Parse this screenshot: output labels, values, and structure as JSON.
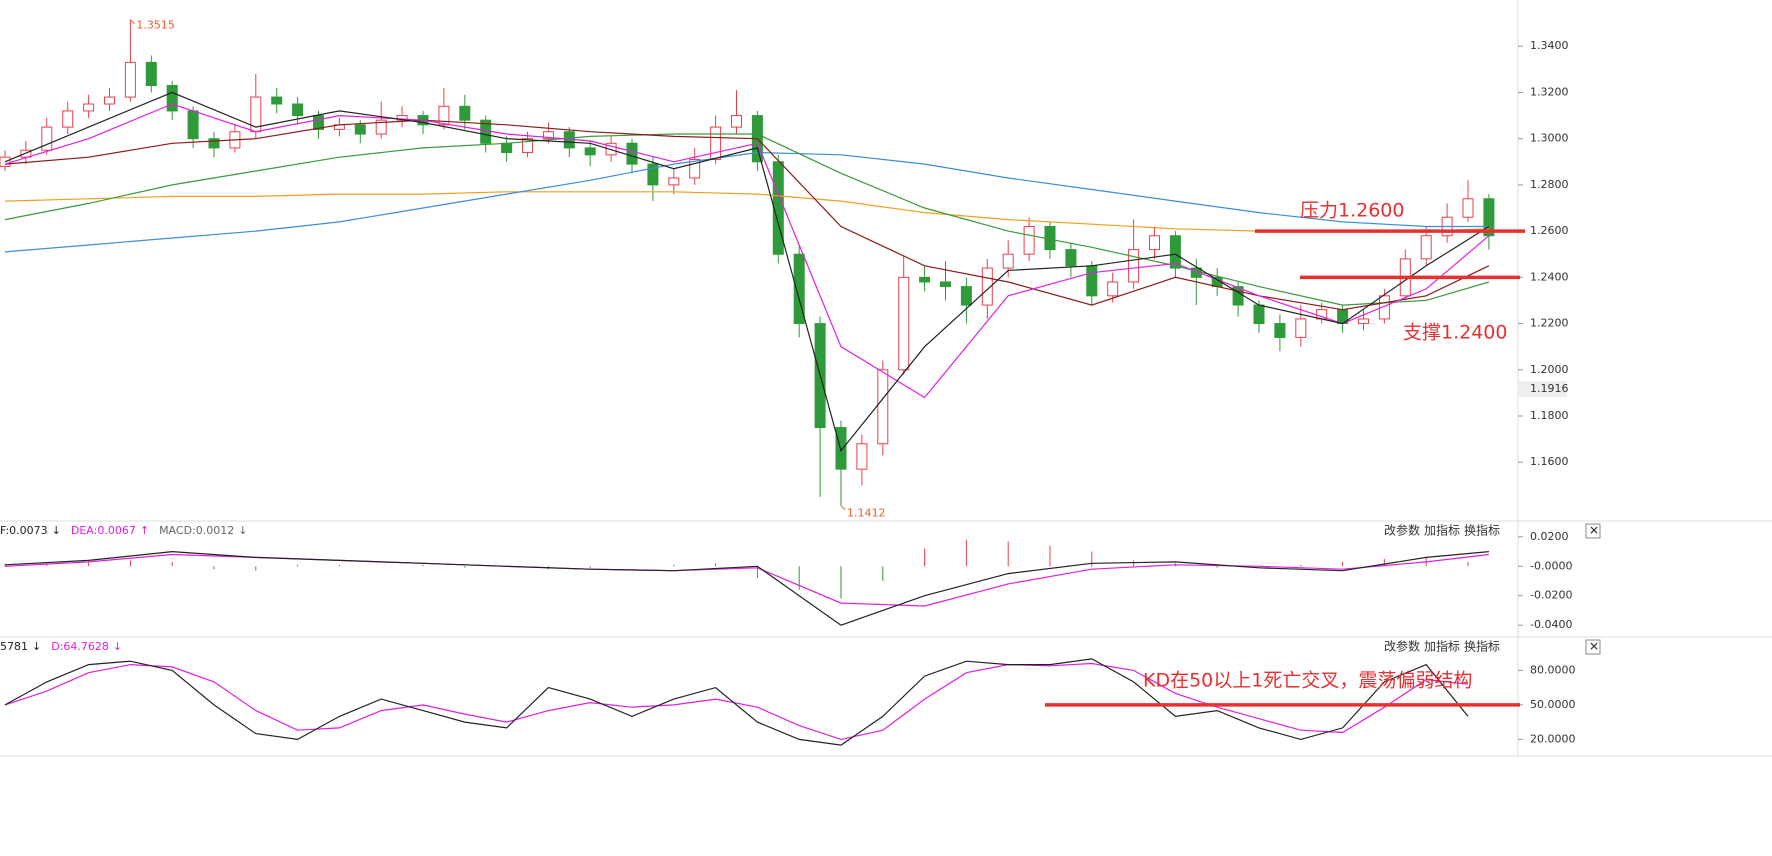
{
  "chart_data": [
    {
      "type": "candlestick",
      "up_color": "#e8414b",
      "down_color": "#2e9a3a",
      "candles": {
        "open": [
          1.288,
          1.292,
          1.295,
          1.305,
          1.312,
          1.315,
          1.318,
          1.333,
          1.323,
          1.312,
          1.3,
          1.296,
          1.303,
          1.318,
          1.315,
          1.31,
          1.304,
          1.306,
          1.302,
          1.308,
          1.31,
          1.306,
          1.314,
          1.308,
          1.298,
          1.294,
          1.3,
          1.303,
          1.296,
          1.293,
          1.298,
          1.289,
          1.28,
          1.283,
          1.291,
          1.305,
          1.31,
          1.29,
          1.25,
          1.22,
          1.175,
          1.157,
          1.168,
          1.2,
          1.24,
          1.238,
          1.236,
          1.228,
          1.244,
          1.25,
          1.262,
          1.252,
          1.245,
          1.232,
          1.238,
          1.252,
          1.258,
          1.244,
          1.24,
          1.236,
          1.228,
          1.22,
          1.214,
          1.222,
          1.226,
          1.22,
          1.222,
          1.232,
          1.248,
          1.258,
          1.266,
          1.274
        ],
        "high": [
          1.295,
          1.299,
          1.309,
          1.316,
          1.319,
          1.322,
          1.3515,
          1.336,
          1.325,
          1.314,
          1.303,
          1.306,
          1.328,
          1.322,
          1.318,
          1.312,
          1.309,
          1.308,
          1.316,
          1.314,
          1.312,
          1.322,
          1.319,
          1.31,
          1.301,
          1.303,
          1.307,
          1.305,
          1.299,
          1.301,
          1.3,
          1.292,
          1.287,
          1.296,
          1.31,
          1.321,
          1.312,
          1.293,
          1.254,
          1.223,
          1.178,
          1.172,
          1.204,
          1.249,
          1.245,
          1.247,
          1.24,
          1.248,
          1.256,
          1.266,
          1.264,
          1.255,
          1.247,
          1.242,
          1.265,
          1.262,
          1.26,
          1.248,
          1.244,
          1.238,
          1.23,
          1.224,
          1.228,
          1.229,
          1.228,
          1.226,
          1.235,
          1.252,
          1.262,
          1.272,
          1.282,
          1.276
        ],
        "low": [
          1.286,
          1.289,
          1.293,
          1.302,
          1.309,
          1.312,
          1.316,
          1.32,
          1.308,
          1.296,
          1.292,
          1.294,
          1.3,
          1.311,
          1.306,
          1.3,
          1.301,
          1.298,
          1.3,
          1.305,
          1.302,
          1.304,
          1.304,
          1.294,
          1.29,
          1.292,
          1.298,
          1.292,
          1.288,
          1.29,
          1.285,
          1.273,
          1.276,
          1.28,
          1.289,
          1.302,
          1.286,
          1.246,
          1.214,
          1.145,
          1.1412,
          1.15,
          1.163,
          1.198,
          1.234,
          1.23,
          1.22,
          1.222,
          1.24,
          1.247,
          1.248,
          1.24,
          1.228,
          1.229,
          1.235,
          1.248,
          1.24,
          1.228,
          1.232,
          1.223,
          1.216,
          1.208,
          1.21,
          1.22,
          1.216,
          1.217,
          1.22,
          1.23,
          1.245,
          1.255,
          1.264,
          1.252
        ],
        "close": [
          1.292,
          1.295,
          1.305,
          1.312,
          1.315,
          1.318,
          1.333,
          1.323,
          1.312,
          1.3,
          1.296,
          1.303,
          1.318,
          1.315,
          1.31,
          1.304,
          1.306,
          1.302,
          1.308,
          1.31,
          1.306,
          1.314,
          1.308,
          1.298,
          1.294,
          1.3,
          1.303,
          1.296,
          1.293,
          1.298,
          1.289,
          1.28,
          1.283,
          1.291,
          1.305,
          1.31,
          1.29,
          1.25,
          1.22,
          1.175,
          1.157,
          1.168,
          1.2,
          1.24,
          1.238,
          1.236,
          1.228,
          1.244,
          1.25,
          1.262,
          1.252,
          1.245,
          1.232,
          1.238,
          1.252,
          1.258,
          1.244,
          1.24,
          1.236,
          1.228,
          1.22,
          1.214,
          1.222,
          1.226,
          1.22,
          1.222,
          1.232,
          1.248,
          1.258,
          1.266,
          1.274,
          1.258
        ]
      },
      "lines": [
        {
          "color": "#f0a020",
          "x": [
            0,
            4,
            8,
            12,
            16,
            20,
            24,
            28,
            32,
            36,
            40,
            44,
            48,
            52,
            56,
            60,
            64,
            68,
            71
          ],
          "values": [
            1.273,
            1.274,
            1.275,
            1.275,
            1.276,
            1.276,
            1.277,
            1.277,
            1.277,
            1.276,
            1.273,
            1.268,
            1.265,
            1.263,
            1.261,
            1.26,
            1.26,
            1.26,
            1.261
          ]
        },
        {
          "color": "#3b8fd9",
          "x": [
            0,
            4,
            8,
            12,
            16,
            20,
            24,
            28,
            32,
            36,
            40,
            44,
            48,
            52,
            56,
            60,
            64,
            68,
            71
          ],
          "values": [
            1.251,
            1.254,
            1.257,
            1.26,
            1.264,
            1.27,
            1.276,
            1.282,
            1.289,
            1.294,
            1.293,
            1.289,
            1.283,
            1.278,
            1.273,
            1.268,
            1.264,
            1.262,
            1.262
          ]
        },
        {
          "color": "#3a9a3a",
          "x": [
            0,
            4,
            8,
            12,
            16,
            20,
            24,
            28,
            32,
            36,
            40,
            44,
            48,
            52,
            56,
            60,
            64,
            68,
            71
          ],
          "values": [
            1.265,
            1.272,
            1.28,
            1.286,
            1.292,
            1.296,
            1.298,
            1.301,
            1.302,
            1.302,
            1.285,
            1.27,
            1.26,
            1.253,
            1.245,
            1.236,
            1.228,
            1.23,
            1.238
          ]
        },
        {
          "color": "#8b1a1a",
          "x": [
            0,
            4,
            8,
            12,
            16,
            20,
            24,
            28,
            32,
            36,
            40,
            44,
            48,
            52,
            56,
            60,
            64,
            68,
            71
          ],
          "values": [
            1.289,
            1.292,
            1.298,
            1.3,
            1.306,
            1.308,
            1.306,
            1.303,
            1.301,
            1.3,
            1.262,
            1.245,
            1.238,
            1.228,
            1.24,
            1.232,
            1.226,
            1.232,
            1.245
          ]
        },
        {
          "color": "#e020e0",
          "x": [
            0,
            4,
            8,
            12,
            16,
            20,
            24,
            28,
            32,
            36,
            40,
            44,
            48,
            52,
            56,
            60,
            64,
            68,
            71
          ],
          "values": [
            1.289,
            1.3,
            1.315,
            1.303,
            1.31,
            1.308,
            1.302,
            1.299,
            1.29,
            1.298,
            1.21,
            1.188,
            1.232,
            1.242,
            1.246,
            1.232,
            1.22,
            1.235,
            1.258
          ]
        },
        {
          "color": "#222222",
          "x": [
            0,
            4,
            8,
            12,
            16,
            20,
            24,
            28,
            32,
            36,
            40,
            44,
            48,
            52,
            56,
            60,
            64,
            68,
            71
          ],
          "values": [
            1.29,
            1.305,
            1.32,
            1.305,
            1.312,
            1.307,
            1.3,
            1.298,
            1.287,
            1.296,
            1.165,
            1.21,
            1.243,
            1.245,
            1.25,
            1.228,
            1.22,
            1.245,
            1.262
          ]
        }
      ],
      "ylim": [
        1.135,
        1.36
      ],
      "yticks": [
        {
          "value": 1.16,
          "label": "1.1600"
        },
        {
          "value": 1.18,
          "label": "1.1800"
        },
        {
          "value": 1.2,
          "label": "1.2000"
        },
        {
          "value": 1.22,
          "label": "1.2200"
        },
        {
          "value": 1.24,
          "label": "1.2400"
        },
        {
          "value": 1.26,
          "label": "1.2600"
        },
        {
          "value": 1.28,
          "label": "1.2800"
        },
        {
          "value": 1.3,
          "label": "1.3000"
        },
        {
          "value": 1.32,
          "label": "1.3200"
        },
        {
          "value": 1.34,
          "label": "1.3400"
        }
      ],
      "current_price": 1.1916,
      "annotations": [
        {
          "text": "压力1.2600",
          "value": 1.26,
          "color": "#e83030"
        },
        {
          "text": "支撑1.2400",
          "value": 1.24,
          "color": "#e83030"
        }
      ]
    },
    {
      "type": "macd",
      "header": [
        {
          "text": "F:0.0073",
          "arrow": "↓",
          "color": "#222222"
        },
        {
          "text": "DEA:0.0067",
          "arrow": "↑",
          "color": "#e020e0"
        },
        {
          "text": "MACD:0.0012",
          "arrow": "↓",
          "color": "#666666"
        }
      ],
      "buttons": [
        "改参数",
        "加指标",
        "换指标",
        "✕"
      ],
      "up_color": "#e8414b",
      "down_color": "#2e9a3a",
      "histogram": {
        "x": [
          0,
          2,
          4,
          6,
          8,
          10,
          12,
          14,
          16,
          18,
          20,
          22,
          24,
          26,
          28,
          30,
          32,
          34,
          36,
          38,
          40,
          42,
          44,
          46,
          48,
          50,
          52,
          54,
          56,
          58,
          60,
          62,
          64,
          66,
          68,
          70
        ],
        "values": [
          0.001,
          0.002,
          0.003,
          0.004,
          0.003,
          -0.002,
          -0.003,
          0.001,
          0.001,
          0.0,
          0.001,
          -0.001,
          0.0,
          -0.002,
          -0.001,
          0.0,
          0.001,
          0.002,
          -0.008,
          -0.016,
          -0.022,
          -0.01,
          0.012,
          0.018,
          0.017,
          0.014,
          0.01,
          0.004,
          0.002,
          -0.001,
          -0.001,
          0.001,
          0.003,
          0.005,
          0.006,
          0.003
        ]
      },
      "lines": [
        {
          "color": "#e020e0",
          "x": [
            0,
            4,
            8,
            12,
            16,
            20,
            24,
            28,
            32,
            36,
            40,
            44,
            48,
            52,
            56,
            60,
            64,
            68,
            71
          ],
          "values": [
            0.0,
            0.003,
            0.008,
            0.006,
            0.004,
            0.002,
            0.0,
            -0.002,
            -0.003,
            -0.001,
            -0.025,
            -0.027,
            -0.012,
            -0.002,
            0.001,
            0.0,
            -0.002,
            0.003,
            0.008
          ]
        },
        {
          "color": "#222222",
          "x": [
            0,
            4,
            8,
            12,
            16,
            20,
            24,
            28,
            32,
            36,
            40,
            44,
            48,
            52,
            56,
            60,
            64,
            68,
            71
          ],
          "values": [
            0.001,
            0.004,
            0.01,
            0.006,
            0.004,
            0.002,
            0.0,
            -0.002,
            -0.003,
            0.0,
            -0.04,
            -0.02,
            -0.005,
            0.002,
            0.003,
            -0.001,
            -0.003,
            0.006,
            0.01
          ]
        }
      ],
      "ylim": [
        -0.046,
        0.026
      ],
      "yticks": [
        {
          "value": 0.02,
          "label": "0.0200"
        },
        {
          "value": 0,
          "label": "-0.0000"
        },
        {
          "value": -0.02,
          "label": "-0.0200"
        },
        {
          "value": -0.04,
          "label": "-0.0400"
        }
      ]
    },
    {
      "type": "kd",
      "header": [
        {
          "text": "5781",
          "arrow": "↓",
          "color": "#222222"
        },
        {
          "text": "D:64.7628",
          "arrow": "↓",
          "color": "#e020e0"
        }
      ],
      "buttons": [
        "改参数",
        "加指标",
        "换指标",
        "✕"
      ],
      "lines": [
        {
          "color": "#e020e0",
          "x": [
            0,
            2,
            4,
            6,
            8,
            10,
            12,
            14,
            16,
            18,
            20,
            22,
            24,
            26,
            28,
            30,
            32,
            34,
            36,
            38,
            40,
            42,
            44,
            46,
            48,
            50,
            52,
            54,
            56,
            58,
            60,
            62,
            64,
            66,
            68,
            70
          ],
          "values": [
            50,
            62,
            78,
            85,
            83,
            70,
            45,
            28,
            30,
            45,
            50,
            42,
            35,
            45,
            52,
            48,
            50,
            55,
            48,
            32,
            20,
            28,
            55,
            78,
            85,
            84,
            86,
            80,
            60,
            48,
            38,
            28,
            26,
            48,
            72,
            68
          ]
        },
        {
          "color": "#222222",
          "x": [
            0,
            2,
            4,
            6,
            8,
            10,
            12,
            14,
            16,
            18,
            20,
            22,
            24,
            26,
            28,
            30,
            32,
            34,
            36,
            38,
            40,
            42,
            44,
            46,
            48,
            50,
            52,
            54,
            56,
            58,
            60,
            62,
            64,
            66,
            68,
            70
          ],
          "values": [
            50,
            70,
            85,
            88,
            80,
            50,
            25,
            20,
            40,
            55,
            45,
            35,
            30,
            65,
            55,
            40,
            55,
            65,
            35,
            20,
            15,
            40,
            75,
            88,
            85,
            85,
            90,
            70,
            40,
            45,
            30,
            20,
            30,
            70,
            85,
            40
          ]
        }
      ],
      "ylim": [
        9,
        96
      ],
      "yticks": [
        {
          "value": 80,
          "label": "80.0000"
        },
        {
          "value": 50,
          "label": "50.0000"
        },
        {
          "value": 20,
          "label": "20.0000"
        }
      ],
      "annotations": [
        {
          "text": "KD在50以上1死亡交叉，震荡偏弱结构",
          "value": 50,
          "color": "#e83030"
        }
      ]
    }
  ]
}
